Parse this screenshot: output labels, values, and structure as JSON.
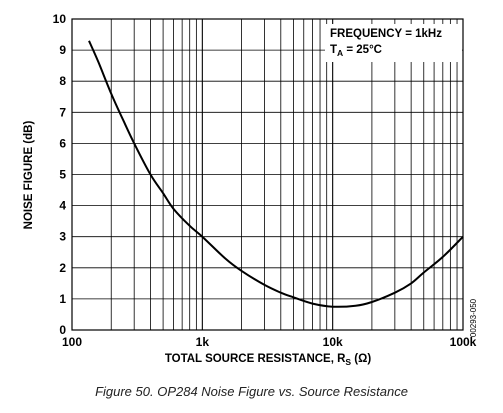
{
  "chart_data": {
    "type": "line",
    "x_scale": "log",
    "xlim": [
      100,
      100000
    ],
    "ylim": [
      0,
      10
    ],
    "grid": true,
    "ylabel": "NOISE FIGURE (dB)",
    "xlabel": {
      "main": "TOTAL SOURCE RESISTANCE, R",
      "sub": "S",
      "unit": " (Ω)"
    },
    "x_ticks": [
      {
        "value": 100,
        "label": "100"
      },
      {
        "value": 1000,
        "label": "1k"
      },
      {
        "value": 10000,
        "label": "10k"
      },
      {
        "value": 100000,
        "label": "100k"
      }
    ],
    "y_ticks": [
      "0",
      "1",
      "2",
      "3",
      "4",
      "5",
      "6",
      "7",
      "8",
      "9",
      "10"
    ],
    "annotation": {
      "line1": "FREQUENCY = 1kHz",
      "line2_main": "T",
      "line2_sub": "A",
      "line2_rest": " = 25°C"
    },
    "figure_id": "00293-050",
    "series": [
      {
        "x": [
          135,
          160,
          200,
          250,
          300,
          400,
          500,
          600,
          800,
          1000,
          1500,
          2000,
          3000,
          4000,
          5000,
          7000,
          10000,
          15000,
          20000,
          30000,
          40000,
          50000,
          70000,
          100000
        ],
        "y": [
          9.3,
          8.6,
          7.6,
          6.7,
          6.0,
          5.0,
          4.4,
          3.9,
          3.35,
          3.0,
          2.3,
          1.9,
          1.45,
          1.2,
          1.05,
          0.85,
          0.75,
          0.78,
          0.9,
          1.2,
          1.5,
          1.85,
          2.35,
          3.0
        ]
      }
    ]
  },
  "caption": "Figure 50. OP284 Noise Figure vs. Source Resistance",
  "colors": {
    "line": "#000000",
    "grid": "#000000",
    "background": "#ffffff"
  }
}
